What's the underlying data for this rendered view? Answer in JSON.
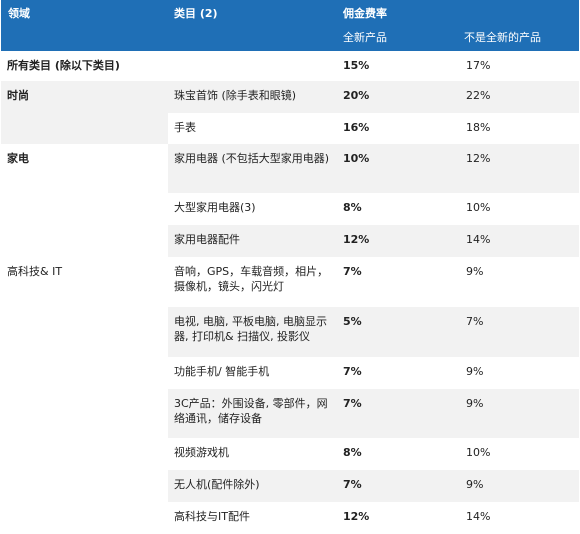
{
  "header": {
    "col_domain": "领域",
    "col_category": "类目 (2)",
    "col_rate": "佣金费率",
    "col_new": "全新产品",
    "col_used": "不是全新的产品"
  },
  "rows": [
    {
      "domain": "所有类目 (除以下类目)",
      "category": "",
      "new": "15%",
      "used": "17%"
    },
    {
      "domain": "时尚",
      "category": "珠宝首饰 (除手表和眼镜)",
      "new": "20%",
      "used": "22%"
    },
    {
      "domain": "",
      "category": "手表",
      "new": "16%",
      "used": "18%"
    },
    {
      "domain": "家电",
      "category": "家用电器 (不包括大型家用电器)",
      "new": "10%",
      "used": "12%"
    },
    {
      "domain": "",
      "category": "大型家用电器(3)",
      "new": "8%",
      "used": "10%"
    },
    {
      "domain": "",
      "category": "家用电器配件",
      "new": "12%",
      "used": "14%"
    },
    {
      "domain": "高科技& IT",
      "category": "音响，GPS，车载音频，相片，摄像机，镜头，闪光灯",
      "new": "7%",
      "used": "9%"
    },
    {
      "domain": "",
      "category": "电视, 电脑, 平板电脑, 电脑显示器, 打印机& 扫描仪, 投影仪",
      "new": "5%",
      "used": "7%"
    },
    {
      "domain": "",
      "category": "功能手机/ 智能手机",
      "new": "7%",
      "used": "9%"
    },
    {
      "domain": "",
      "category": "3C产品：外围设备, 零部件，网络通讯，储存设备",
      "new": "7%",
      "used": "9%"
    },
    {
      "domain": "",
      "category": "视频游戏机",
      "new": "8%",
      "used": "10%"
    },
    {
      "domain": "",
      "category": "无人机(配件除外)",
      "new": "7%",
      "used": "9%"
    },
    {
      "domain": "",
      "category": "高科技与IT配件",
      "new": "12%",
      "used": "14%"
    }
  ],
  "colors": {
    "header_bg": "#1f6fb6",
    "stripe": "#f2f2f2"
  }
}
